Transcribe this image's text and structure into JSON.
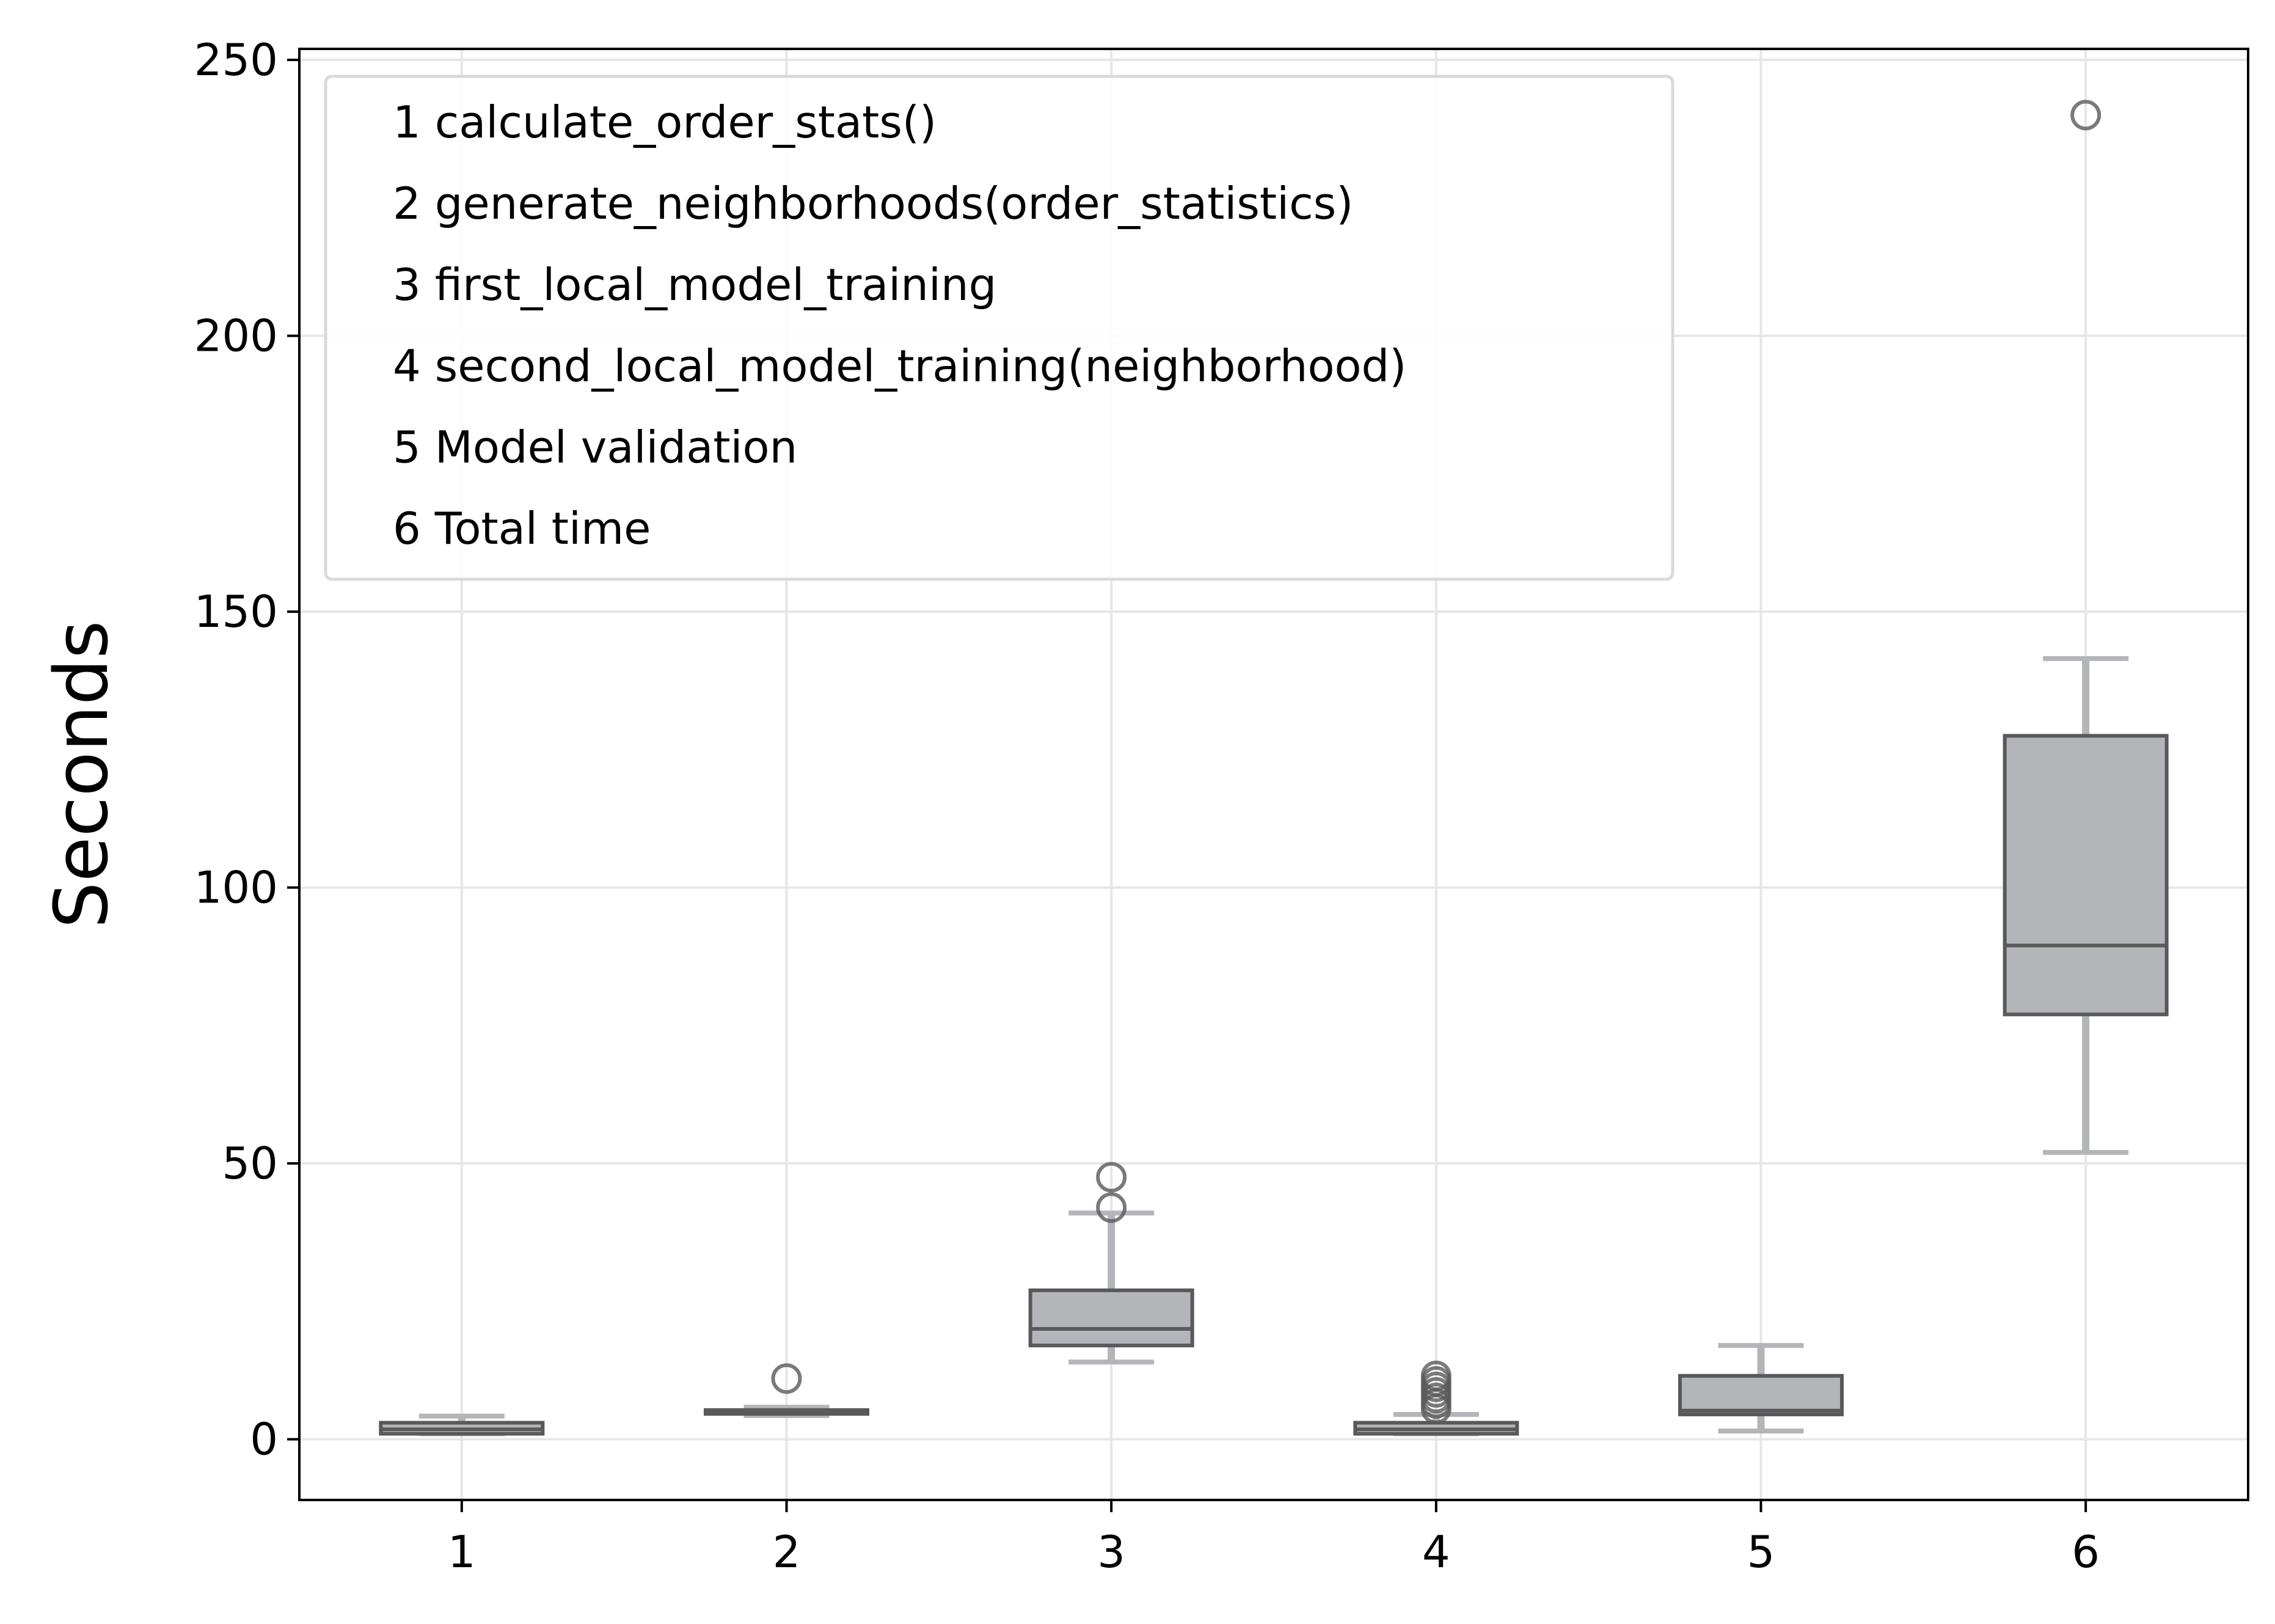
{
  "chart_data": {
    "type": "box",
    "title": "",
    "xlabel": "",
    "ylabel": "Seconds",
    "ylim": [
      -11,
      252
    ],
    "yticks": [
      0,
      50,
      100,
      150,
      200,
      250
    ],
    "grid": true,
    "legend_placement": "upper-left",
    "legend": [
      "1 calculate_order_stats()",
      "2 generate_neighborhoods(order_statistics)",
      "3 first_local_model_training",
      "4 second_local_model_training(neighborhood)",
      "5 Model validation",
      "6 Total time"
    ],
    "categories": [
      "1",
      "2",
      "3",
      "4",
      "5",
      "6"
    ],
    "boxes": [
      {
        "label": "1",
        "q1": 1,
        "median": 1.8,
        "q3": 3,
        "whisker_low": 1,
        "whisker_high": 4.2,
        "outliers": []
      },
      {
        "label": "2",
        "q1": 4.6,
        "median": 5.0,
        "q3": 5.3,
        "whisker_low": 4.3,
        "whisker_high": 5.8,
        "outliers": [
          11
        ]
      },
      {
        "label": "3",
        "q1": 17,
        "median": 20,
        "q3": 27,
        "whisker_low": 14,
        "whisker_high": 41,
        "outliers": [
          42,
          47.5
        ]
      },
      {
        "label": "4",
        "q1": 1,
        "median": 1.8,
        "q3": 3,
        "whisker_low": 1,
        "whisker_high": 4.5,
        "outliers": [
          5.5,
          6.5,
          7.5,
          8.5,
          9.5,
          10.5,
          11.5
        ]
      },
      {
        "label": "5",
        "q1": 4.5,
        "median": 5.2,
        "q3": 11.5,
        "whisker_low": 1.5,
        "whisker_high": 17,
        "outliers": []
      },
      {
        "label": "6",
        "q1": 77,
        "median": 89.5,
        "q3": 127.5,
        "whisker_low": 52,
        "whisker_high": 141.5,
        "outliers": [
          240
        ]
      }
    ],
    "colors": {
      "box_fill": "#b3b5b9",
      "box_edge": "#595959",
      "whisker": "#b3b5b9",
      "outlier_edge": "#595959",
      "grid": "#e6e6e6",
      "axes": "#000000"
    }
  }
}
